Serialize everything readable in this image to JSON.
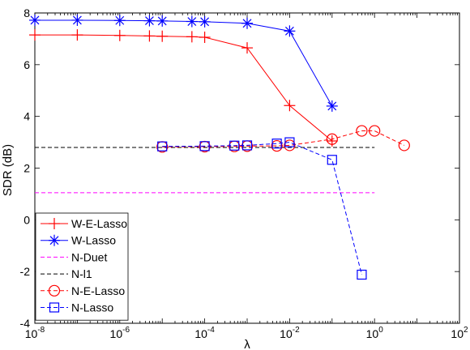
{
  "chart_data": {
    "type": "line",
    "title": "",
    "xlabel": "λ",
    "ylabel": "SDR (dB)",
    "xscale": "log",
    "xlim": [
      1e-08,
      100
    ],
    "ylim": [
      -4,
      8
    ],
    "xticks": [
      1e-08,
      1e-06,
      0.0001,
      0.01,
      1,
      100
    ],
    "xtick_labels": [
      {
        "base": "10",
        "exp": "-8"
      },
      {
        "base": "10",
        "exp": "-6"
      },
      {
        "base": "10",
        "exp": "-4"
      },
      {
        "base": "10",
        "exp": "-2"
      },
      {
        "base": "10",
        "exp": "0"
      },
      {
        "base": "10",
        "exp": "2"
      }
    ],
    "yticks": [
      -4,
      -2,
      0,
      2,
      4,
      6,
      8
    ],
    "grid": false,
    "legend_position": "bottom-left",
    "series": [
      {
        "name": "W-E-Lasso",
        "color": "#ff0000",
        "marker": "plus",
        "dash": "solid",
        "x": [
          1e-08,
          1e-07,
          1e-06,
          5e-06,
          1e-05,
          5e-05,
          0.0001,
          0.001,
          0.01,
          0.1
        ],
        "y": [
          7.15,
          7.15,
          7.13,
          7.11,
          7.1,
          7.08,
          7.06,
          6.65,
          4.42,
          3.05
        ]
      },
      {
        "name": "W-Lasso",
        "color": "#0000ff",
        "marker": "asterisk",
        "dash": "solid",
        "x": [
          1e-08,
          1e-07,
          1e-06,
          5e-06,
          1e-05,
          5e-05,
          0.0001,
          0.001,
          0.01,
          0.1
        ],
        "y": [
          7.72,
          7.72,
          7.71,
          7.7,
          7.69,
          7.67,
          7.66,
          7.6,
          7.3,
          4.4
        ]
      },
      {
        "name": "N-Duet",
        "color": "#ff00ff",
        "marker": "none",
        "dash": "dashed",
        "x": [
          1e-08,
          1
        ],
        "y": [
          1.05,
          1.05
        ]
      },
      {
        "name": "N-l1",
        "color": "#000000",
        "marker": "none",
        "dash": "dashed",
        "x": [
          1e-08,
          1
        ],
        "y": [
          2.8,
          2.8
        ]
      },
      {
        "name": "N-E-Lasso",
        "color": "#ff0000",
        "marker": "circle",
        "dash": "dashed",
        "x": [
          1e-05,
          0.0001,
          0.0005,
          0.001,
          0.005,
          0.01,
          0.1,
          0.5,
          1,
          5
        ],
        "y": [
          2.82,
          2.83,
          2.84,
          2.85,
          2.86,
          2.88,
          3.12,
          3.44,
          3.44,
          2.88
        ]
      },
      {
        "name": "N-Lasso",
        "color": "#0000ff",
        "marker": "square",
        "dash": "dashed",
        "x": [
          1e-05,
          0.0001,
          0.0005,
          0.001,
          0.005,
          0.01,
          0.1,
          0.5
        ],
        "y": [
          2.84,
          2.85,
          2.87,
          2.88,
          2.95,
          3.0,
          2.32,
          -2.12
        ]
      }
    ]
  }
}
